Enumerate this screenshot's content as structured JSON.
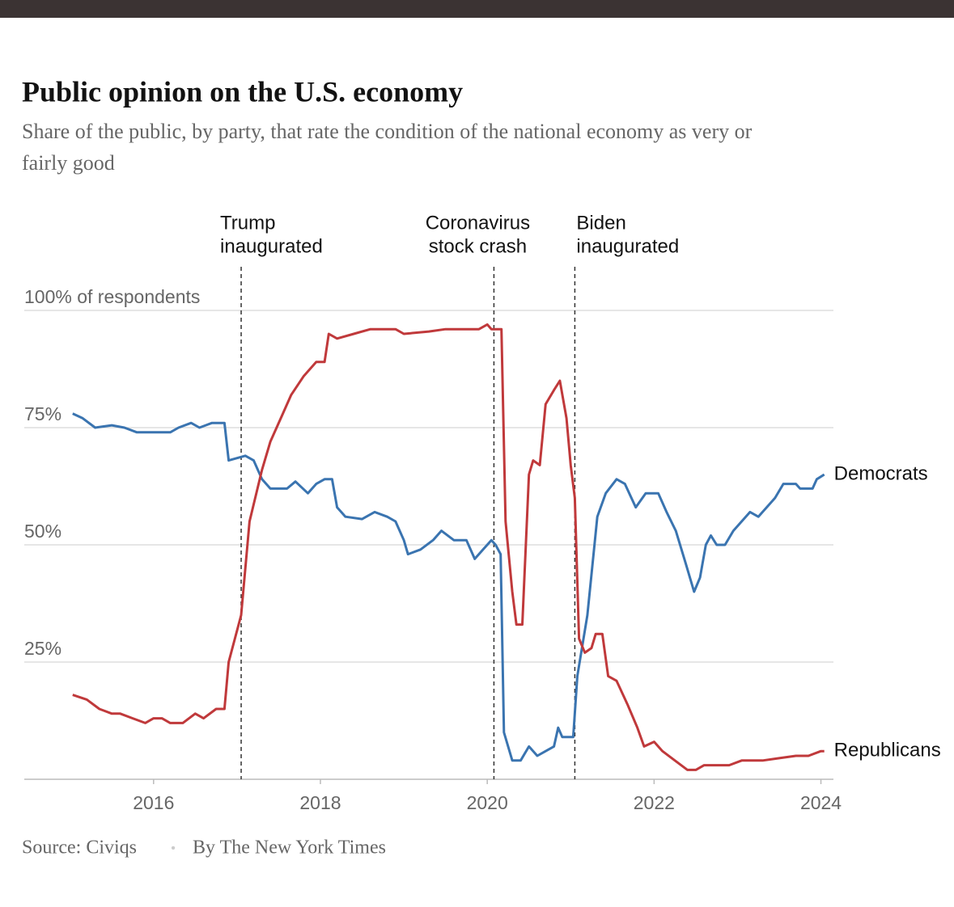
{
  "chart_data": {
    "type": "line",
    "title": "Public opinion on the U.S. economy",
    "subtitle_lines": [
      "Share of the public, by party, that rate the condition of the national economy as very or",
      "fairly good"
    ],
    "xlim": [
      2014.45,
      2024.15
    ],
    "xticks": [
      2016,
      2018,
      2020,
      2022,
      2024
    ],
    "ylim": [
      0,
      100
    ],
    "yticks": [
      {
        "value": 25,
        "label": "25%"
      },
      {
        "value": 50,
        "label": "50%"
      },
      {
        "value": 75,
        "label": "75%"
      },
      {
        "value": 100,
        "label": "100% of respondents"
      }
    ],
    "grid": true,
    "annotations": [
      {
        "x": 2017.05,
        "lines": [
          "Trump",
          "inaugurated"
        ]
      },
      {
        "x": 2020.08,
        "lines": [
          "Coronavirus",
          "stock crash"
        ]
      },
      {
        "x": 2021.05,
        "lines": [
          "Biden",
          "inaugurated"
        ]
      }
    ],
    "series": [
      {
        "name": "Democrats",
        "color": "#3a74b0",
        "x": [
          2015.03,
          2015.15,
          2015.3,
          2015.5,
          2015.65,
          2015.8,
          2016.2,
          2016.3,
          2016.45,
          2016.55,
          2016.7,
          2016.85,
          2016.9,
          2017.1,
          2017.2,
          2017.3,
          2017.4,
          2017.6,
          2017.7,
          2017.85,
          2017.95,
          2018.05,
          2018.14,
          2018.2,
          2018.3,
          2018.5,
          2018.65,
          2018.8,
          2018.9,
          2019.0,
          2019.05,
          2019.2,
          2019.35,
          2019.45,
          2019.6,
          2019.75,
          2019.85,
          2019.95,
          2020.05,
          2020.1,
          2020.16,
          2020.2,
          2020.3,
          2020.4,
          2020.5,
          2020.6,
          2020.7,
          2020.8,
          2020.85,
          2020.9,
          2021.03,
          2021.08,
          2021.2,
          2021.32,
          2021.42,
          2021.55,
          2021.65,
          2021.78,
          2021.9,
          2022.05,
          2022.15,
          2022.26,
          2022.38,
          2022.48,
          2022.55,
          2022.62,
          2022.68,
          2022.75,
          2022.85,
          2022.95,
          2023.05,
          2023.15,
          2023.25,
          2023.35,
          2023.45,
          2023.55,
          2023.7,
          2023.75,
          2023.9,
          2023.95,
          2024.04
        ],
        "values": [
          78,
          77,
          75,
          75.5,
          75,
          74,
          74,
          75,
          76,
          75,
          76,
          76,
          68,
          69,
          68,
          64,
          62,
          62,
          63.5,
          61,
          63,
          64,
          64,
          58,
          56,
          55.5,
          57,
          56,
          55,
          51,
          48,
          49,
          51,
          53,
          51,
          51,
          47,
          49,
          51,
          50,
          48,
          10,
          4,
          4,
          7,
          5,
          6,
          7,
          11,
          9,
          9,
          22,
          35,
          56,
          61,
          64,
          63,
          58,
          61,
          61,
          57,
          53,
          46,
          40,
          43,
          50,
          52,
          50,
          50,
          53,
          55,
          57,
          56,
          58,
          60,
          63,
          63,
          62,
          62,
          64,
          65
        ]
      },
      {
        "name": "Republicans",
        "color": "#c0393b",
        "x": [
          2015.03,
          2015.2,
          2015.35,
          2015.5,
          2015.6,
          2015.75,
          2015.9,
          2016.0,
          2016.1,
          2016.2,
          2016.35,
          2016.5,
          2016.6,
          2016.75,
          2016.85,
          2016.9,
          2017.05,
          2017.15,
          2017.3,
          2017.4,
          2017.55,
          2017.65,
          2017.8,
          2017.95,
          2018.05,
          2018.1,
          2018.2,
          2018.4,
          2018.6,
          2018.9,
          2019.0,
          2019.3,
          2019.5,
          2019.9,
          2020.0,
          2020.05,
          2020.17,
          2020.22,
          2020.3,
          2020.35,
          2020.42,
          2020.5,
          2020.55,
          2020.63,
          2020.7,
          2020.8,
          2020.87,
          2020.95,
          2021.0,
          2021.05,
          2021.1,
          2021.17,
          2021.25,
          2021.3,
          2021.38,
          2021.45,
          2021.55,
          2021.68,
          2021.8,
          2021.88,
          2022.0,
          2022.1,
          2022.25,
          2022.4,
          2022.5,
          2022.6,
          2022.9,
          2023.05,
          2023.3,
          2023.5,
          2023.7,
          2023.85,
          2024.0,
          2024.04
        ],
        "values": [
          18,
          17,
          15,
          14,
          14,
          13,
          12,
          13,
          13,
          12,
          12,
          14,
          13,
          15,
          15,
          25,
          35,
          55,
          66,
          72,
          78,
          82,
          86,
          89,
          89,
          95,
          94,
          95,
          96,
          96,
          95,
          95.5,
          96,
          96,
          97,
          96,
          96,
          55,
          40,
          33,
          33,
          65,
          68,
          67,
          80,
          83,
          85,
          77,
          67,
          60,
          30,
          27,
          28,
          31,
          31,
          22,
          21,
          16,
          11,
          7,
          8,
          6,
          4,
          2,
          2,
          3,
          3,
          4,
          4,
          4.5,
          5,
          5,
          6,
          6
        ]
      }
    ],
    "source": "Source: Civiqs",
    "byline": "By The New York Times"
  }
}
